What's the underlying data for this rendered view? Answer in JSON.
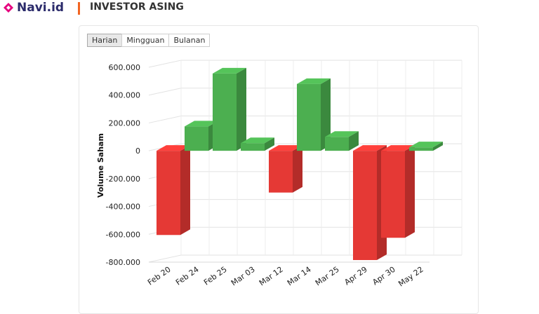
{
  "brand": {
    "name": "Navi.id",
    "color": "#e6007e"
  },
  "section": {
    "title": "INVESTOR ASING"
  },
  "tabs": [
    {
      "label": "Harian",
      "active": true
    },
    {
      "label": "Mingguan",
      "active": false
    },
    {
      "label": "Bulanan",
      "active": false
    }
  ],
  "chart_data": {
    "type": "bar",
    "categories": [
      "Feb 20",
      "Feb 24",
      "Feb 25",
      "Mar 03",
      "Mar 12",
      "Mar 14",
      "Mar 25",
      "Apr 29",
      "Apr 30",
      "May 22"
    ],
    "values": [
      -605000,
      175000,
      555000,
      55000,
      -300000,
      480000,
      100000,
      -785000,
      -625000,
      25000
    ],
    "ylabel": "Volume Saham",
    "ylim": [
      -800000,
      600000
    ],
    "yticks": [
      600000,
      400000,
      200000,
      0,
      -200000,
      -400000,
      -600000,
      -800000
    ],
    "ytick_labels": [
      "600.000",
      "400.000",
      "200.000",
      "0",
      "-200.000",
      "-400.000",
      "-600.000",
      "-800.000"
    ],
    "colors": {
      "positive": "#4caf50",
      "negative": "#e53935"
    },
    "grid": true,
    "style": "3d"
  }
}
